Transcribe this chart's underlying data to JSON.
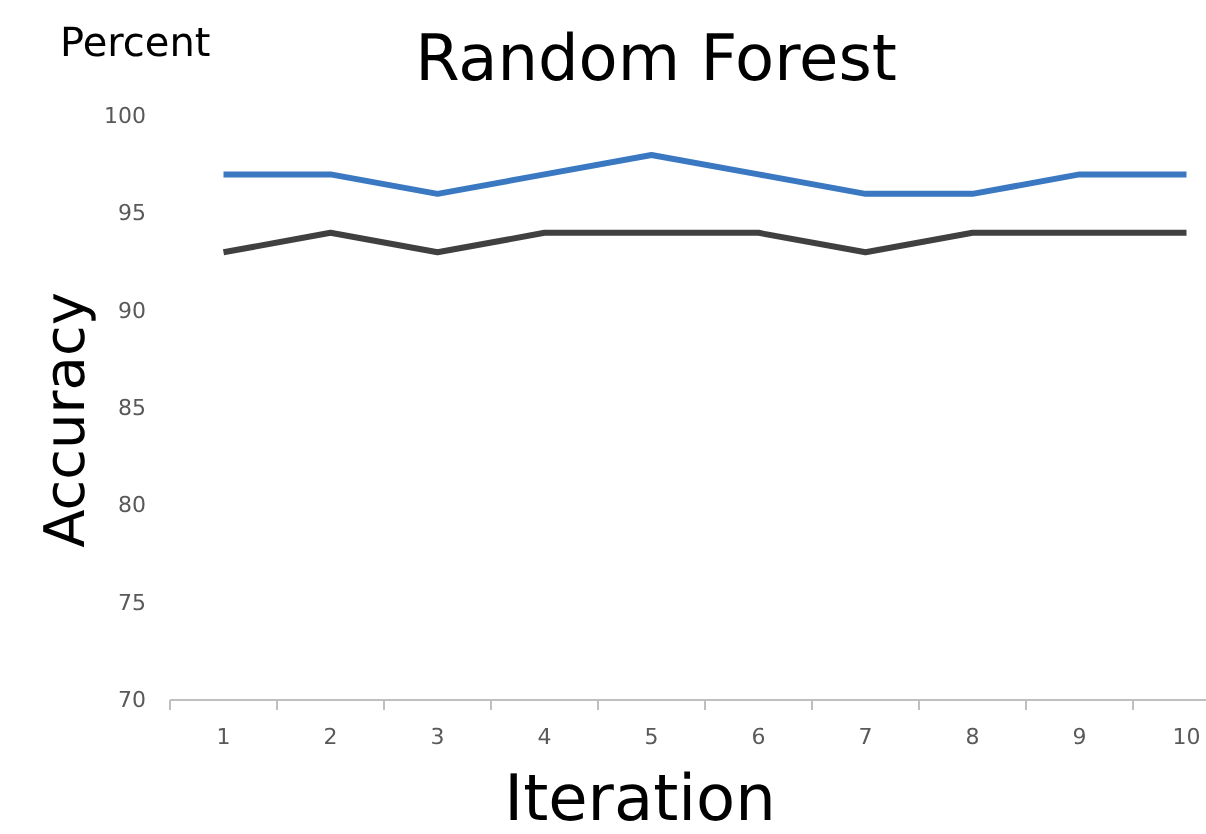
{
  "chart_data": {
    "type": "line",
    "title": "Random Forest",
    "xlabel": "Iteration",
    "ylabel": "Accuracy",
    "annotations": [
      "Percent"
    ],
    "categories": [
      "1",
      "2",
      "3",
      "4",
      "5",
      "6",
      "7",
      "8",
      "9",
      "10"
    ],
    "series": [
      {
        "color": "#3a78c2",
        "values": [
          97,
          97,
          96,
          97,
          98,
          97,
          96,
          96,
          97,
          97
        ]
      },
      {
        "color": "#404040",
        "values": [
          93,
          94,
          93,
          94,
          94,
          94,
          93,
          94,
          94,
          94
        ]
      }
    ],
    "ylim": [
      70,
      100
    ],
    "yticks": [
      70,
      75,
      80,
      85,
      90,
      95,
      100
    ],
    "grid": false,
    "marker": "none",
    "line_style": "solid"
  }
}
